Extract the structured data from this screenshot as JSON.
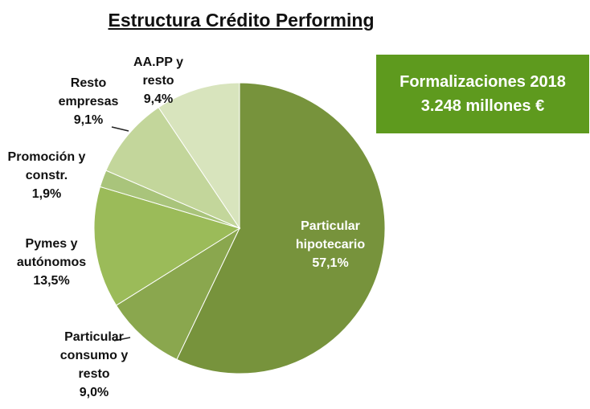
{
  "chart_data": {
    "type": "pie",
    "title": "Estructura Crédito Performing",
    "categories": [
      "Particular hipotecario",
      "Particular consumo y resto",
      "Pymes y autónomos",
      "Promoción y constr.",
      "Resto empresas",
      "AA.PP y resto"
    ],
    "values": [
      57.1,
      9.0,
      13.5,
      1.9,
      9.1,
      9.4
    ],
    "value_labels": [
      "57,1%",
      "9,0%",
      "13,5%",
      "1,9%",
      "9,1%",
      "9,4%"
    ],
    "colors": [
      "#77933c",
      "#8aa74e",
      "#9bbb59",
      "#a9c47b",
      "#c3d69b",
      "#d8e4bd"
    ],
    "annotations": [
      "Formalizaciones 2018",
      "3.248 millones €"
    ]
  }
}
